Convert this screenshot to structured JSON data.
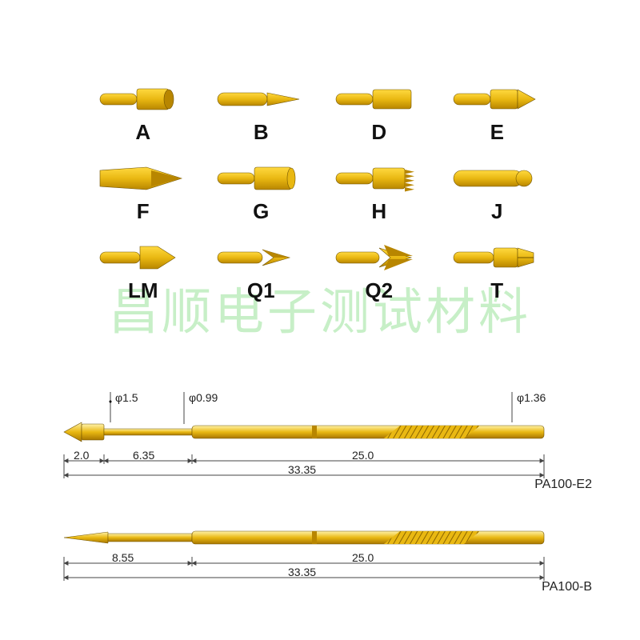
{
  "watermark_text": "昌顺电子测试材料",
  "tip_labels": [
    "A",
    "B",
    "D",
    "E",
    "F",
    "G",
    "H",
    "J",
    "LM",
    "Q1",
    "Q2",
    "T"
  ],
  "pin_colors": {
    "gold_light": "#ffd940",
    "gold_mid": "#e9b812",
    "gold_dark": "#b88600",
    "shadow": "#6f5200"
  },
  "tips": [
    {
      "id": "A",
      "type": "cup"
    },
    {
      "id": "B",
      "type": "needle"
    },
    {
      "id": "D",
      "type": "flat-cyl"
    },
    {
      "id": "E",
      "type": "cone60"
    },
    {
      "id": "F",
      "type": "spear"
    },
    {
      "id": "G",
      "type": "flat-wide"
    },
    {
      "id": "H",
      "type": "crown"
    },
    {
      "id": "J",
      "type": "dome"
    },
    {
      "id": "LM",
      "type": "cone-wide"
    },
    {
      "id": "Q1",
      "type": "star3"
    },
    {
      "id": "Q2",
      "type": "star4"
    },
    {
      "id": "T",
      "type": "chisel"
    }
  ],
  "drawings": {
    "pa1": {
      "name": "PA100-E2",
      "diam_head": "1.5",
      "diam_shaft": "0.99",
      "diam_body": "1.36",
      "seg1": "2.0",
      "seg2": "6.35",
      "seg3": "25.0",
      "total": "33.35"
    },
    "pa2": {
      "name": "PA100-B",
      "seg1": "8.55",
      "seg2": "25.0",
      "total": "33.35"
    },
    "dim_color": "#333333",
    "arrow_color": "#444444"
  }
}
